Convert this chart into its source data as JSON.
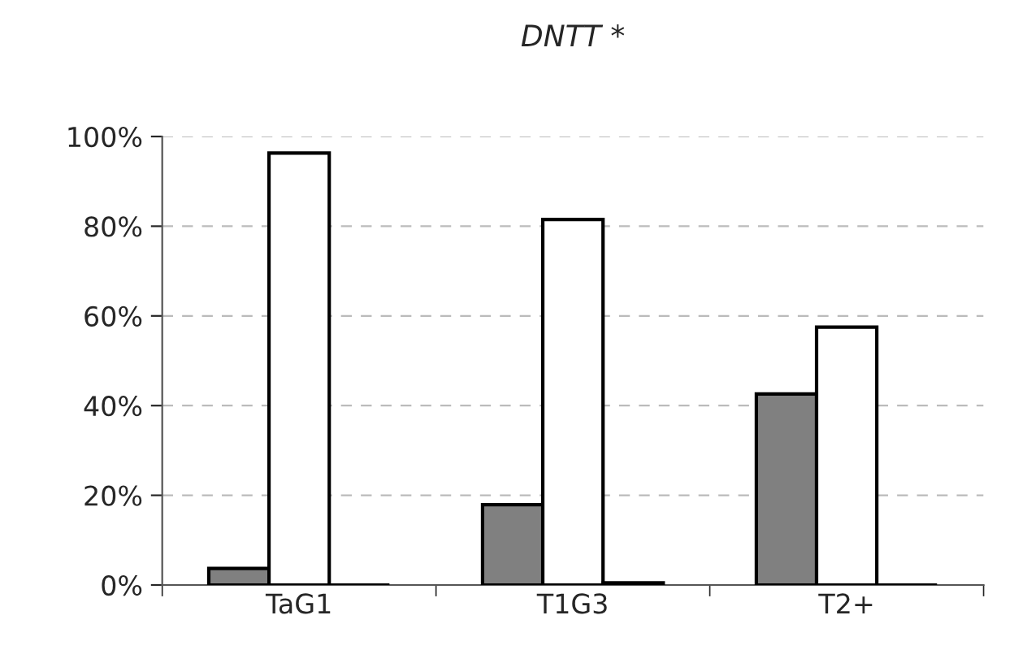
{
  "chart_data": {
    "type": "bar",
    "title": "DNTT *",
    "categories": [
      "TaG1",
      "T1G3",
      "T2+"
    ],
    "series": [
      {
        "color": "#808080",
        "values": [
          3.7,
          17.9,
          42.6
        ]
      },
      {
        "color": "#ffffff",
        "values": [
          96.3,
          81.5,
          57.5
        ]
      },
      {
        "color": "#000000",
        "values": [
          0,
          0.5,
          0
        ]
      }
    ],
    "ylim": [
      0,
      100
    ],
    "yticks": [
      {
        "value": 0,
        "label": "0%"
      },
      {
        "value": 20,
        "label": "20%"
      },
      {
        "value": 40,
        "label": "40%"
      },
      {
        "value": 60,
        "label": "60%"
      },
      {
        "value": 80,
        "label": "80%"
      },
      {
        "value": 100,
        "label": "100%"
      }
    ],
    "grid": "y",
    "legend": false
  }
}
